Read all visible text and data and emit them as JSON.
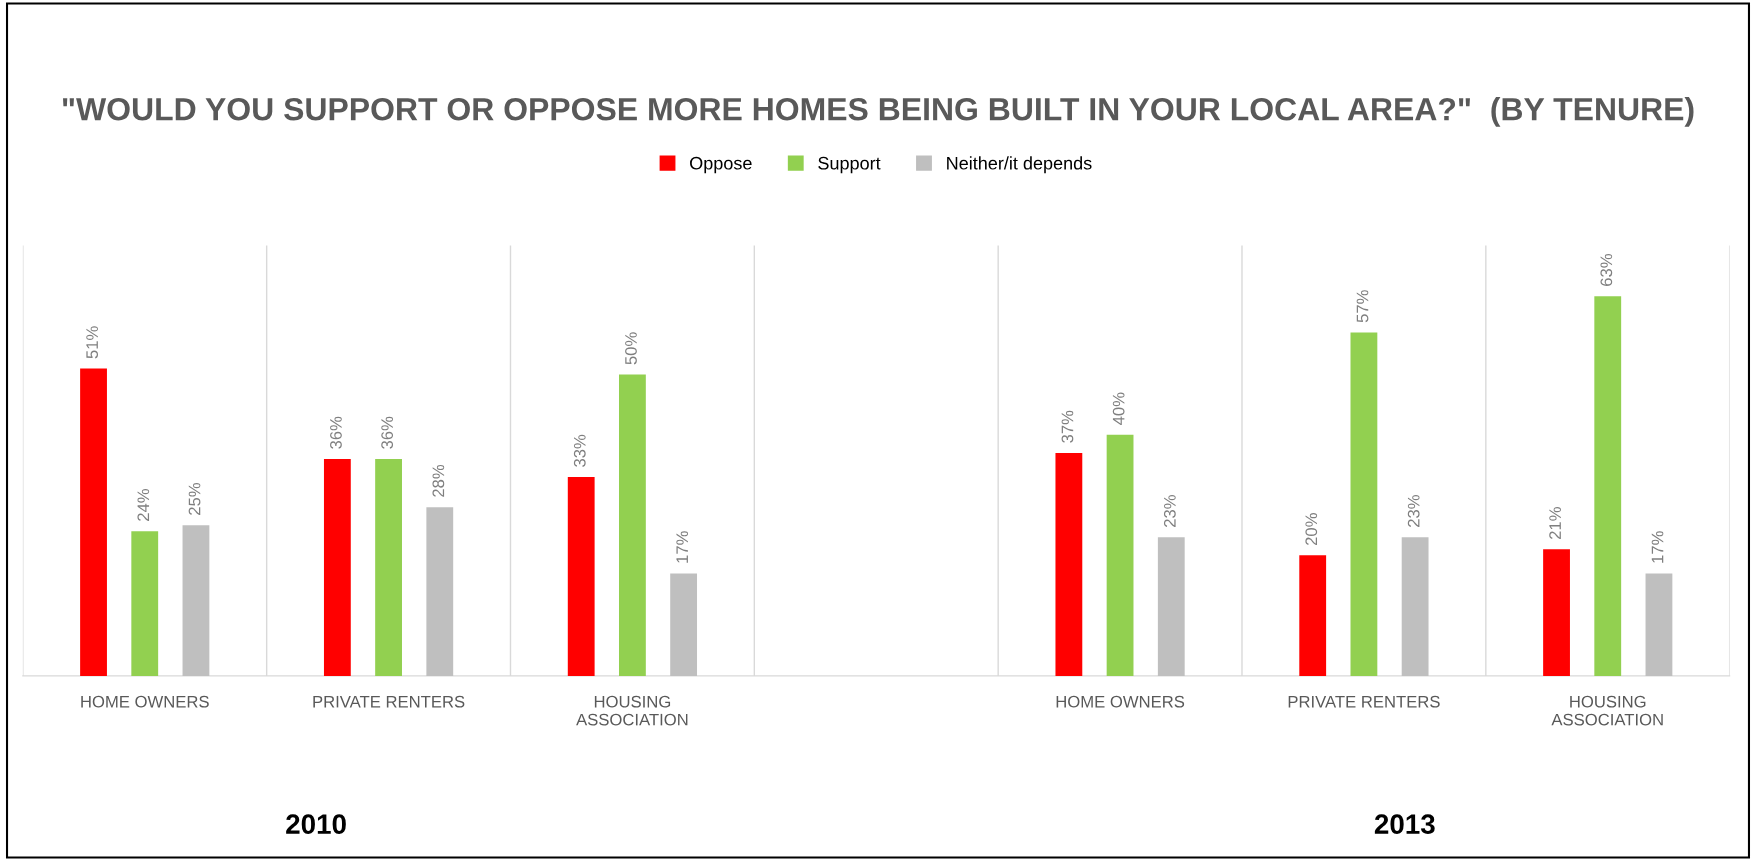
{
  "chart_data": {
    "type": "bar",
    "title": "\"WOULD YOU SUPPORT OR OPPOSE MORE HOMES BEING BUILT IN YOUR LOCAL AREA?\"  (BY TENURE)",
    "categories": [
      "HOME OWNERS",
      "PRIVATE RENTERS",
      "HOUSING\nASSOCIATION",
      null,
      "HOME OWNERS",
      "PRIVATE RENTERS",
      "HOUSING\nASSOCIATION"
    ],
    "series": [
      {
        "name": "Oppose",
        "color": "#ff0000",
        "values": [
          51,
          36,
          33,
          null,
          37,
          20,
          21
        ],
        "value_labels": [
          "51%",
          "36%",
          "33%",
          null,
          "37%",
          "20%",
          "21%"
        ]
      },
      {
        "name": "Support",
        "color": "#92d050",
        "values": [
          24,
          36,
          50,
          null,
          40,
          57,
          63
        ],
        "value_labels": [
          "24%",
          "36%",
          "50%",
          null,
          "40%",
          "57%",
          "63%"
        ]
      },
      {
        "name": "Neither/it depends",
        "color": "#bfbfbf",
        "values": [
          25,
          28,
          17,
          null,
          23,
          23,
          17
        ],
        "value_labels": [
          "25%",
          "28%",
          "17%",
          null,
          "23%",
          "23%",
          "17%"
        ]
      }
    ],
    "annotations": [
      "2010",
      "2013"
    ],
    "legend": "top",
    "grid": "x"
  }
}
